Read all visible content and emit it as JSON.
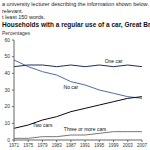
{
  "prompt_lines": [
    "a university lecturer describing the information shown below. M",
    "relevant.",
    "t least 150 words."
  ],
  "chart_data": {
    "type": "line",
    "title": "Households with a regular use of a car, Great Britain",
    "y_label": "Percentages",
    "x": [
      1971,
      1975,
      1979,
      1983,
      1987,
      1991,
      1995,
      1999,
      2003,
      2007
    ],
    "series": [
      {
        "name": "No car",
        "color": "#4a6fa5",
        "values": [
          48,
          44,
          41,
          39,
          35,
          33,
          30,
          28,
          26,
          25
        ]
      },
      {
        "name": "One car",
        "color": "#1c2e5a",
        "values": [
          44,
          45,
          45,
          44,
          45,
          44,
          45,
          44,
          45,
          44
        ]
      },
      {
        "name": "Two cars",
        "color": "#0a0a0a",
        "values": [
          7,
          9,
          12,
          14,
          17,
          19,
          21,
          23,
          25,
          26
        ]
      },
      {
        "name": "Three or more cars",
        "color": "#777777",
        "values": [
          1,
          1,
          2,
          2,
          3,
          3,
          4,
          5,
          5,
          5
        ]
      }
    ],
    "xlim": [
      1971,
      2007
    ],
    "xticks": [
      1971,
      1975,
      1979,
      1983,
      1987,
      1991,
      1995,
      1999,
      2003,
      2007
    ],
    "ylim": [
      0,
      60
    ],
    "yticks": [
      0,
      10,
      20,
      30,
      40,
      50,
      60
    ],
    "grid": false
  }
}
